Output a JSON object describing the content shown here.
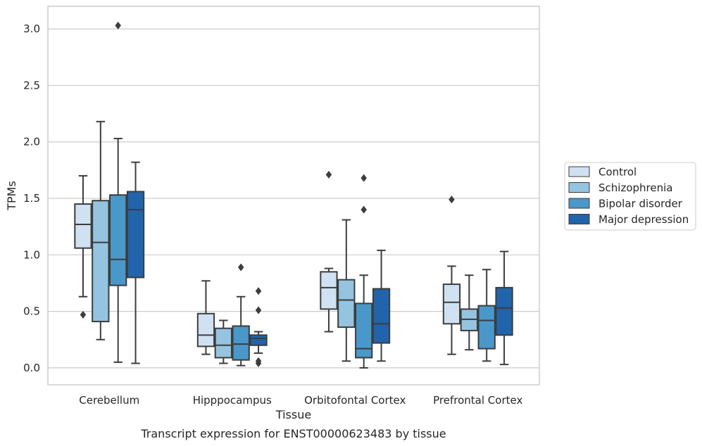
{
  "caption": "Transcript expression for ENST00000623483 by tissue",
  "chart_data": {
    "type": "boxplot",
    "xlabel": "Tissue",
    "ylabel": "TPMs",
    "ylim": [
      -0.15,
      3.2
    ],
    "yticks": [
      "0.0",
      "0.5",
      "1.0",
      "1.5",
      "2.0",
      "2.5",
      "3.0"
    ],
    "grid": "horizontal",
    "legend_position": "right",
    "categories": [
      "Cerebellum",
      "Hipppocampus",
      "Orbitofontal Cortex",
      "Prefrontal Cortex"
    ],
    "series": [
      {
        "name": "Control",
        "color": "#d0e1f2",
        "boxes": [
          {
            "whislo": 0.63,
            "q1": 1.06,
            "med": 1.27,
            "q3": 1.45,
            "whishi": 1.7,
            "fliers": [
              0.47
            ]
          },
          {
            "whislo": 0.12,
            "q1": 0.19,
            "med": 0.29,
            "q3": 0.48,
            "whishi": 0.77,
            "fliers": []
          },
          {
            "whislo": 0.32,
            "q1": 0.52,
            "med": 0.71,
            "q3": 0.85,
            "whishi": 0.88,
            "fliers": [
              1.71
            ]
          },
          {
            "whislo": 0.12,
            "q1": 0.39,
            "med": 0.58,
            "q3": 0.74,
            "whishi": 0.9,
            "fliers": [
              1.49
            ]
          }
        ]
      },
      {
        "name": "Schizophrenia",
        "color": "#94c4df",
        "boxes": [
          {
            "whislo": 0.25,
            "q1": 0.41,
            "med": 1.11,
            "q3": 1.48,
            "whishi": 2.18,
            "fliers": []
          },
          {
            "whislo": 0.04,
            "q1": 0.09,
            "med": 0.2,
            "q3": 0.35,
            "whishi": 0.42,
            "fliers": []
          },
          {
            "whislo": 0.06,
            "q1": 0.36,
            "med": 0.6,
            "q3": 0.78,
            "whishi": 1.31,
            "fliers": []
          },
          {
            "whislo": 0.16,
            "q1": 0.33,
            "med": 0.43,
            "q3": 0.52,
            "whishi": 0.82,
            "fliers": []
          }
        ]
      },
      {
        "name": "Bipolar disorder",
        "color": "#4a98c9",
        "boxes": [
          {
            "whislo": 0.05,
            "q1": 0.73,
            "med": 0.96,
            "q3": 1.53,
            "whishi": 2.03,
            "fliers": [
              3.03
            ]
          },
          {
            "whislo": 0.02,
            "q1": 0.07,
            "med": 0.21,
            "q3": 0.37,
            "whishi": 0.63,
            "fliers": [
              0.89
            ]
          },
          {
            "whislo": 0.0,
            "q1": 0.09,
            "med": 0.17,
            "q3": 0.57,
            "whishi": 0.82,
            "fliers": [
              1.68,
              1.4
            ]
          },
          {
            "whislo": 0.06,
            "q1": 0.17,
            "med": 0.42,
            "q3": 0.55,
            "whishi": 0.87,
            "fliers": []
          }
        ]
      },
      {
        "name": "Major depression",
        "color": "#2164ab",
        "boxes": [
          {
            "whislo": 0.04,
            "q1": 0.8,
            "med": 1.4,
            "q3": 1.56,
            "whishi": 1.82,
            "fliers": []
          },
          {
            "whislo": 0.13,
            "q1": 0.2,
            "med": 0.26,
            "q3": 0.29,
            "whishi": 0.32,
            "fliers": [
              0.68,
              0.51,
              0.06,
              0.04
            ]
          },
          {
            "whislo": 0.06,
            "q1": 0.22,
            "med": 0.39,
            "q3": 0.7,
            "whishi": 1.04,
            "fliers": []
          },
          {
            "whislo": 0.03,
            "q1": 0.29,
            "med": 0.53,
            "q3": 0.71,
            "whishi": 1.03,
            "fliers": []
          }
        ]
      }
    ]
  }
}
